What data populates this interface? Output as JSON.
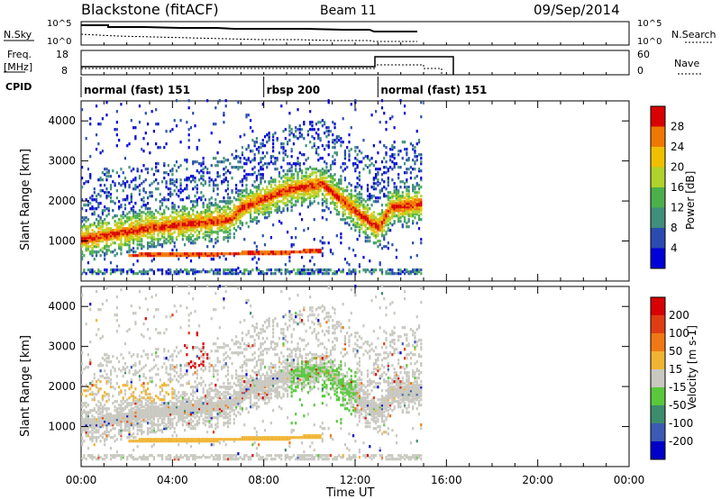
{
  "header": {
    "station": "Blackstone (fitACF)",
    "beam": "Beam 11",
    "date": "09/Sep/2014"
  },
  "sky_panel": {
    "left_label": "N.Sky",
    "right_label": "N.Search",
    "y_ticks": [
      "10^5",
      "10^0"
    ],
    "yscale": "log"
  },
  "freq_panel": {
    "left_label_line1": "Freq.",
    "left_label_line2": "[MHz]",
    "left_ticks": [
      "18",
      "8"
    ],
    "right_label": "Nave",
    "right_ticks": [
      "60",
      "0"
    ]
  },
  "cpid": {
    "label": "CPID",
    "segments": [
      {
        "label": "normal (fast) 151",
        "start": 0.0,
        "end": 8.0
      },
      {
        "label": "rbsp 200",
        "start": 8.0,
        "end": 13.0
      },
      {
        "label": "normal (fast) 151",
        "start": 13.0,
        "end": 24.0
      }
    ]
  },
  "chart_data": [
    {
      "type": "heatmap",
      "title": "",
      "ylabel": "Slant Range [km]",
      "ylim": [
        0,
        4500
      ],
      "xlim": [
        0,
        24
      ],
      "y_ticks": [
        "1000",
        "2000",
        "3000",
        "4000"
      ],
      "colorbar_label": "Power [dB]",
      "colorbar_ticks": [
        "4",
        "8",
        "12",
        "16",
        "20",
        "24",
        "28"
      ],
      "colorbar_colors": [
        "#0000d8",
        "#2a4cb0",
        "#3f8f7a",
        "#4bb04b",
        "#b0d22a",
        "#f0c000",
        "#f07800",
        "#d80000"
      ],
      "data_extent_hours": [
        0,
        14.9
      ],
      "features": [
        {
          "name": "main backscatter band",
          "range_km": [
            [
              0,
              1000
            ],
            [
              3,
              1300
            ],
            [
              6.5,
              1500
            ],
            [
              7,
              1800
            ],
            [
              9,
              2250
            ],
            [
              10.5,
              2400
            ],
            [
              12,
              1700
            ],
            [
              13,
              1300
            ],
            [
              13.5,
              1800
            ],
            [
              14.9,
              1900
            ]
          ]
        },
        {
          "name": "lower band",
          "range_km": [
            [
              2,
              600
            ],
            [
              7,
              650
            ],
            [
              10,
              700
            ]
          ]
        }
      ]
    },
    {
      "type": "heatmap",
      "title": "",
      "ylabel": "Slant Range [km]",
      "xlabel": "Time UT",
      "ylim": [
        0,
        4500
      ],
      "xlim": [
        0,
        24
      ],
      "y_ticks": [
        "1000",
        "2000",
        "3000",
        "4000"
      ],
      "x_ticks": [
        "00:00",
        "04:00",
        "08:00",
        "12:00",
        "16:00",
        "20:00",
        "00:00"
      ],
      "colorbar_label": "Velocity [m s-1]",
      "colorbar_ticks": [
        "200",
        "100",
        "50",
        "15",
        "-15",
        "-50",
        "-100",
        "-200"
      ],
      "colorbar_colors": [
        "#0000c8",
        "#3c5ab4",
        "#3c8c6e",
        "#5ac83c",
        "#c8c8c0",
        "#f0b432",
        "#f07814",
        "#e03c14",
        "#d80000"
      ],
      "data_extent_hours": [
        0,
        14.9
      ]
    }
  ]
}
